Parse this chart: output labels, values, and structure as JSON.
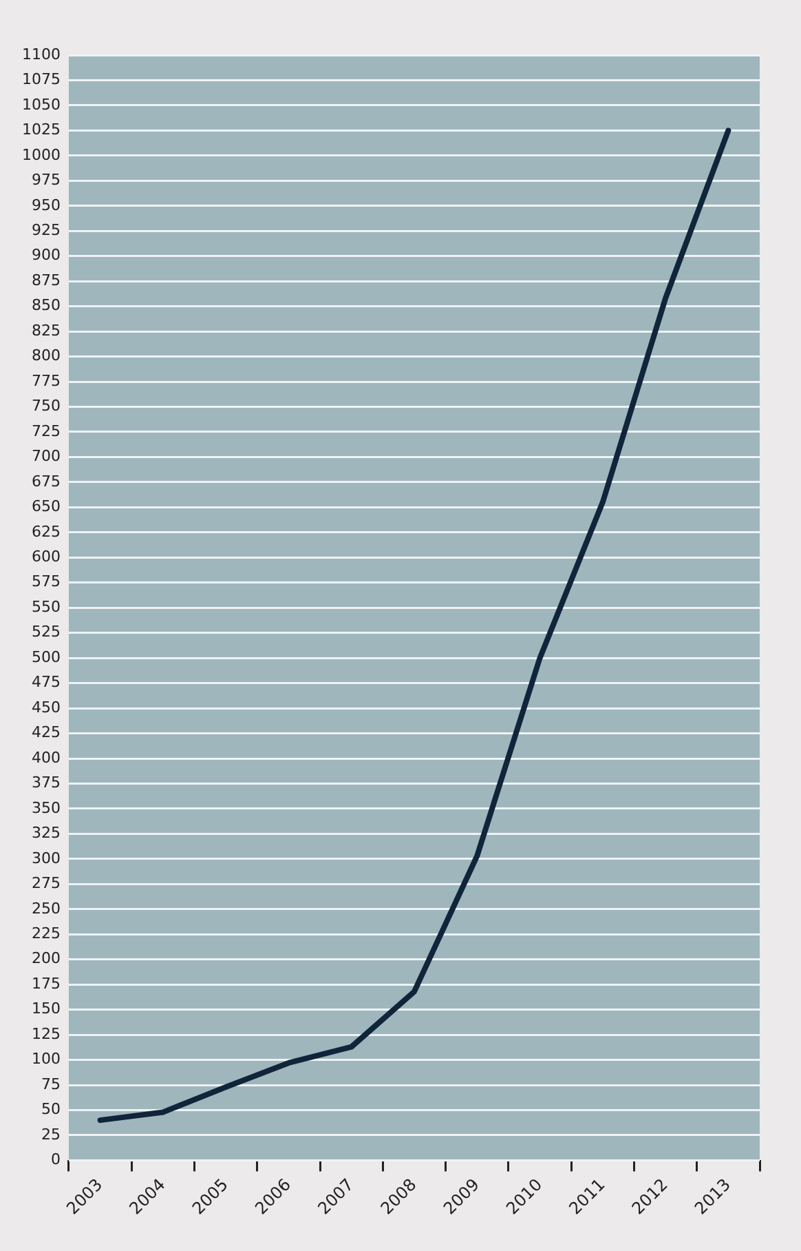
{
  "chart_data": {
    "type": "line",
    "categories": [
      "2003",
      "2004",
      "2005",
      "2006",
      "2007",
      "2008",
      "2009",
      "2010",
      "2011",
      "2012",
      "2013"
    ],
    "series": [
      {
        "color": "#10253a",
        "values": [
          40,
          48,
          73,
          97,
          113,
          168,
          303,
          500,
          655,
          858,
          1025
        ]
      }
    ],
    "ylim": [
      0,
      1100
    ],
    "yticks": [
      0,
      25,
      50,
      75,
      100,
      125,
      150,
      175,
      200,
      225,
      250,
      275,
      300,
      325,
      350,
      375,
      400,
      425,
      450,
      475,
      500,
      525,
      550,
      575,
      600,
      625,
      650,
      675,
      700,
      725,
      750,
      775,
      800,
      825,
      850,
      875,
      900,
      925,
      950,
      975,
      1000,
      1025,
      1050,
      1075,
      1100
    ],
    "grid": "y",
    "marker": "none",
    "line_style": "solid",
    "legend": false
  }
}
